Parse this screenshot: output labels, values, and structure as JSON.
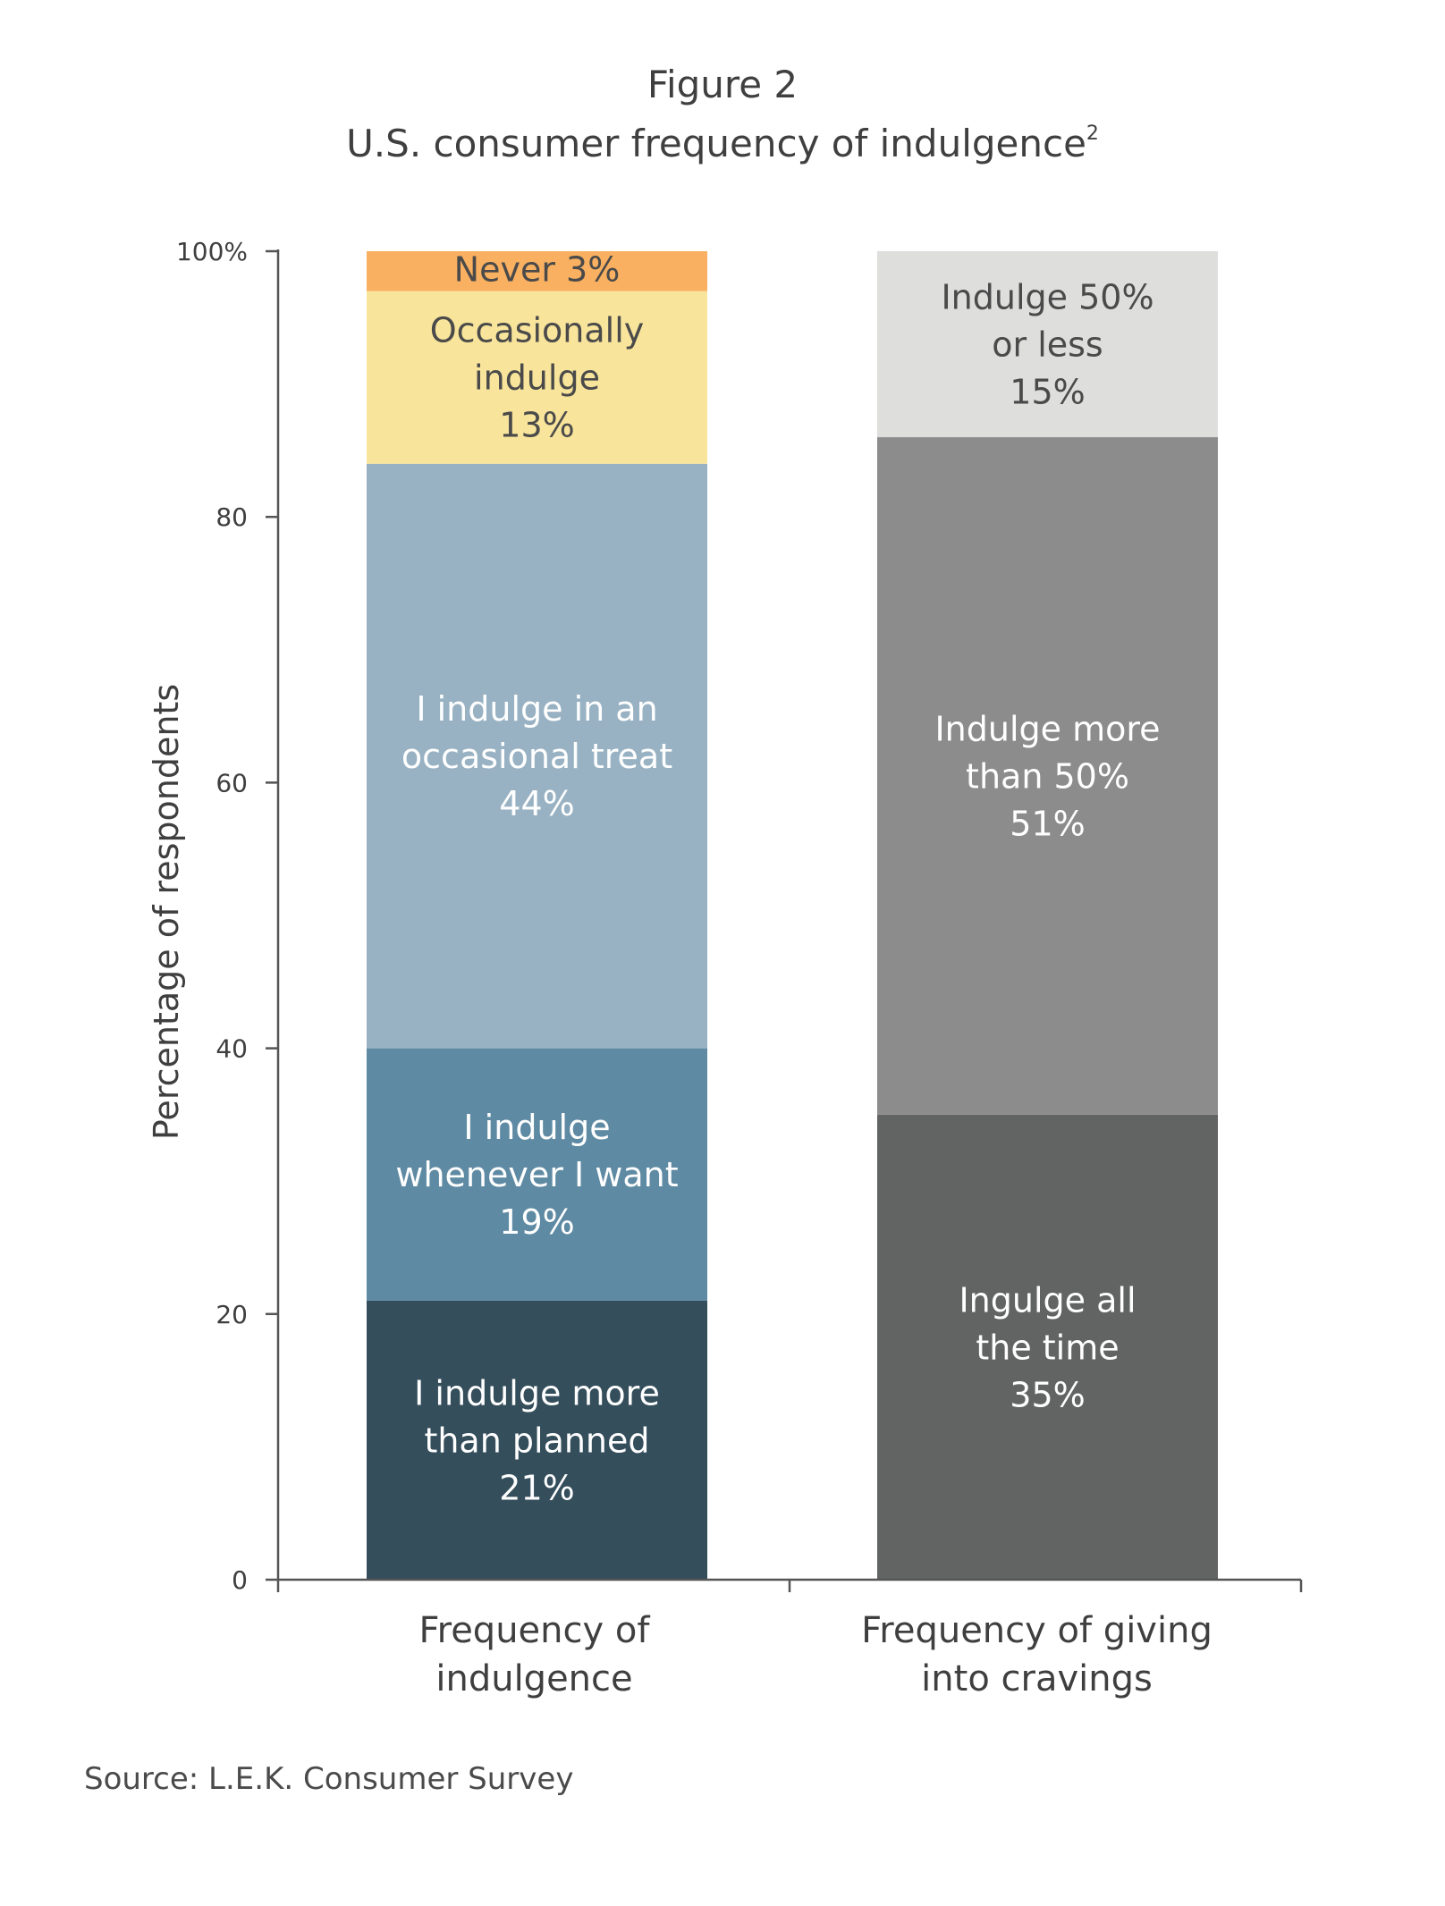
{
  "figure_label": "Figure 2",
  "title": "U.S. consumer frequency of indulgence",
  "title_superscript": "2",
  "source": "Source: L.E.K. Consumer Survey",
  "chart_data": {
    "type": "bar",
    "stacked": true,
    "ylabel": "Percentage of respondents",
    "ylim": [
      0,
      100
    ],
    "yticks": [
      {
        "value": 0,
        "label": "0"
      },
      {
        "value": 20,
        "label": "20"
      },
      {
        "value": 40,
        "label": "40"
      },
      {
        "value": 60,
        "label": "60"
      },
      {
        "value": 80,
        "label": "80"
      },
      {
        "value": 100,
        "label": "100%"
      }
    ],
    "bars": [
      {
        "category": [
          "Frequency of",
          "indulgence"
        ],
        "segments": [
          {
            "value": 21,
            "label": [
              "I indulge more",
              "than planned",
              "21%"
            ],
            "color": "#344e5c",
            "text_color": "#ffffff"
          },
          {
            "value": 19,
            "label": [
              "I indulge",
              "whenever I want",
              "19%"
            ],
            "color": "#5f8aa3",
            "text_color": "#ffffff"
          },
          {
            "value": 44,
            "label": [
              "I indulge in an",
              "occasional treat",
              "44%"
            ],
            "color": "#98b2c3",
            "text_color": "#ffffff"
          },
          {
            "value": 13,
            "label": [
              "Occasionally",
              "indulge",
              "13%"
            ],
            "color": "#f8e49b",
            "text_color": "#4a4a4a"
          },
          {
            "value": 3,
            "label": [
              "Never 3%"
            ],
            "color": "#f9b060",
            "text_color": "#4a4a4a"
          }
        ]
      },
      {
        "category": [
          "Frequency of giving",
          "into cravings"
        ],
        "segments": [
          {
            "value": 35,
            "label": [
              "Ingulge all",
              "the time",
              "35%"
            ],
            "color": "#626463",
            "text_color": "#ffffff"
          },
          {
            "value": 51,
            "label": [
              "Indulge more",
              "than 50%",
              "51%"
            ],
            "color": "#8c8c8c",
            "text_color": "#ffffff"
          },
          {
            "value": 15,
            "label": [
              "Indulge 50%",
              "or less",
              "15%"
            ],
            "color": "#dededd",
            "text_color": "#4a4a4a"
          }
        ]
      }
    ],
    "grid": false,
    "legend": "none"
  }
}
